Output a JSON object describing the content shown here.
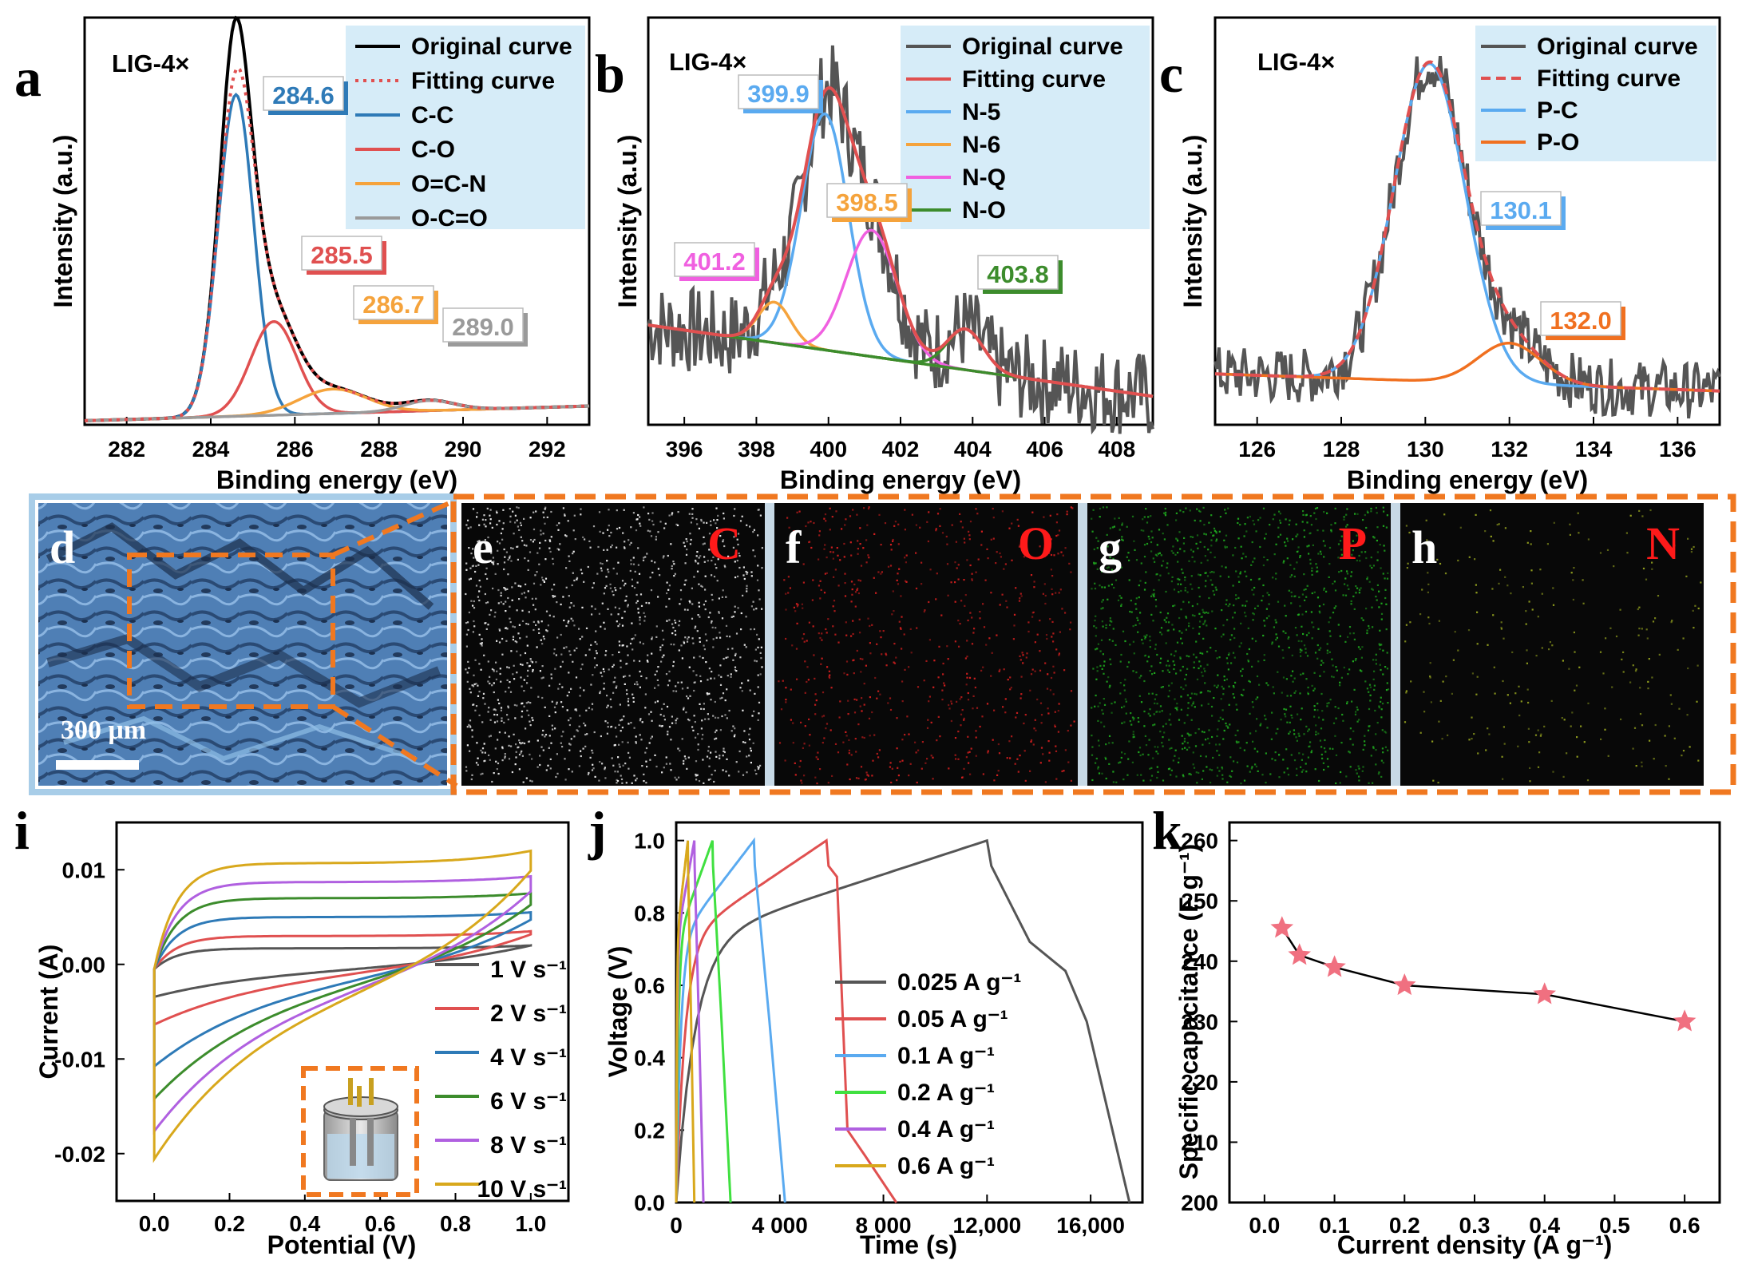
{
  "colors": {
    "black": "#000000",
    "dark_gray": "#555555",
    "red": "#e05050",
    "blue": "#2e7ab7",
    "light_blue": "#5aaaf0",
    "orange": "#f5a33c",
    "gray": "#9a9a9a",
    "pink": "#f060e0",
    "green": "#3c8c2c",
    "dark_orange": "#f07020",
    "legend_bg": "#d6ecf8",
    "dashed_box": "#f07820",
    "sem_blue": "#5a8fc8",
    "eds_c": "#ffffff",
    "eds_o": "#e02020",
    "eds_p": "#20b020",
    "eds_n": "#9aa820"
  },
  "chart_data": [
    {
      "id": "a",
      "panel_label": "a",
      "type": "line",
      "sample_label": "LIG-4×",
      "xlabel": "Binding energy (eV)",
      "ylabel": "Intensity (a.u.)",
      "xlim": [
        281,
        293
      ],
      "ylim": [
        0,
        1
      ],
      "xticks": [
        282,
        284,
        286,
        288,
        290,
        292
      ],
      "yticks": [],
      "legend_position": "top-right",
      "series": [
        {
          "name": "Original curve",
          "style": "solid",
          "color": "black"
        },
        {
          "name": "Fitting curve",
          "style": "dotted",
          "color": "red"
        },
        {
          "name": "C-C",
          "style": "solid",
          "color": "blue"
        },
        {
          "name": "C-O",
          "style": "solid",
          "color": "red"
        },
        {
          "name": "O=C-N",
          "style": "solid",
          "color": "orange"
        },
        {
          "name": "O-C=O",
          "style": "solid",
          "color": "gray"
        }
      ],
      "peaks": [
        {
          "label": "284.6",
          "x": 284.6,
          "color": "blue"
        },
        {
          "label": "285.5",
          "x": 285.5,
          "color": "red"
        },
        {
          "label": "286.7",
          "x": 286.7,
          "color": "orange"
        },
        {
          "label": "289.0",
          "x": 289.0,
          "color": "gray"
        }
      ]
    },
    {
      "id": "b",
      "panel_label": "b",
      "type": "line",
      "sample_label": "LIG-4×",
      "xlabel": "Binding energy (eV)",
      "ylabel": "Intensity (a.u.)",
      "xlim": [
        395,
        409
      ],
      "ylim": [
        0,
        1
      ],
      "xticks": [
        396,
        398,
        400,
        402,
        404,
        406,
        408
      ],
      "yticks": [],
      "legend_position": "top-right",
      "series": [
        {
          "name": "Original curve",
          "style": "solid",
          "color": "dark_gray"
        },
        {
          "name": "Fitting curve",
          "style": "solid",
          "color": "red"
        },
        {
          "name": "N-5",
          "style": "solid",
          "color": "light_blue"
        },
        {
          "name": "N-6",
          "style": "solid",
          "color": "orange"
        },
        {
          "name": "N-Q",
          "style": "solid",
          "color": "pink"
        },
        {
          "name": "N-O",
          "style": "solid",
          "color": "green"
        }
      ],
      "peaks": [
        {
          "label": "399.9",
          "x": 399.9,
          "color": "light_blue"
        },
        {
          "label": "398.5",
          "x": 398.5,
          "color": "orange"
        },
        {
          "label": "401.2",
          "x": 401.2,
          "color": "pink"
        },
        {
          "label": "403.8",
          "x": 403.8,
          "color": "green"
        }
      ]
    },
    {
      "id": "c",
      "panel_label": "c",
      "type": "line",
      "sample_label": "LIG-4×",
      "xlabel": "Binding energy (eV)",
      "ylabel": "Intensity (a.u.)",
      "xlim": [
        125,
        137
      ],
      "ylim": [
        0,
        1
      ],
      "xticks": [
        126,
        128,
        130,
        132,
        134,
        136
      ],
      "yticks": [],
      "legend_position": "top-right",
      "series": [
        {
          "name": "Original curve",
          "style": "solid",
          "color": "dark_gray"
        },
        {
          "name": "Fitting curve",
          "style": "dashed",
          "color": "red"
        },
        {
          "name": "P-C",
          "style": "solid",
          "color": "light_blue"
        },
        {
          "name": "P-O",
          "style": "solid",
          "color": "dark_orange"
        }
      ],
      "peaks": [
        {
          "label": "130.1",
          "x": 130.1,
          "color": "light_blue"
        },
        {
          "label": "132.0",
          "x": 132.0,
          "color": "dark_orange"
        }
      ]
    },
    {
      "id": "i",
      "panel_label": "i",
      "type": "line",
      "xlabel": "Potential (V)",
      "ylabel": "Current (A)",
      "xlim": [
        -0.1,
        1.1
      ],
      "ylim": [
        -0.025,
        0.015
      ],
      "xticks": [
        "0.0",
        "0.2",
        "0.4",
        "0.6",
        "0.8",
        "1.0"
      ],
      "yticks": [
        "0.01",
        "0.00",
        "-0.01",
        "-0.02"
      ],
      "legend_position": "right",
      "series": [
        {
          "name": "1 V s⁻¹",
          "color": "dark_gray",
          "i_top": 0.0022,
          "i_bottom": -0.0035,
          "i_vertex": 0.0025
        },
        {
          "name": "2 V s⁻¹",
          "color": "red",
          "i_top": 0.0035,
          "i_bottom": -0.0065,
          "i_vertex": 0.004
        },
        {
          "name": "4 V s⁻¹",
          "color": "blue",
          "i_top": 0.0055,
          "i_bottom": -0.011,
          "i_vertex": 0.006
        },
        {
          "name": "6 V s⁻¹",
          "color": "green",
          "i_top": 0.0075,
          "i_bottom": -0.0145,
          "i_vertex": 0.008
        },
        {
          "name": "8 V s⁻¹",
          "color": "purple",
          "i_top": 0.0092,
          "i_bottom": -0.018,
          "i_vertex": 0.0098
        },
        {
          "name": "10 V s⁻¹",
          "color": "gold",
          "i_top": 0.0112,
          "i_bottom": -0.021,
          "i_vertex": 0.0125
        }
      ]
    },
    {
      "id": "j",
      "panel_label": "j",
      "type": "line",
      "xlabel": "Time (s)",
      "ylabel": "Voltage (V)",
      "xlim": [
        0,
        18000
      ],
      "ylim": [
        0,
        1.05
      ],
      "xticks": [
        "0",
        "4 000",
        "8 000",
        "12,000",
        "16,000"
      ],
      "yticks": [
        "0.0",
        "0.2",
        "0.4",
        "0.6",
        "0.8",
        "1.0"
      ],
      "legend_position": "bottom-right",
      "series": [
        {
          "name": "0.025 A g⁻¹",
          "color": "dark_gray",
          "charge_end": 12000,
          "discharge_end": 17500
        },
        {
          "name": "0.05 A g⁻¹",
          "color": "red",
          "charge_end": 5800,
          "discharge_end": 8500
        },
        {
          "name": "0.1 A g⁻¹",
          "color": "light_blue",
          "charge_end": 3000,
          "discharge_end": 4200
        },
        {
          "name": "0.2 A g⁻¹",
          "color": "light_green",
          "charge_end": 1400,
          "discharge_end": 2100
        },
        {
          "name": "0.4 A g⁻¹",
          "color": "purple",
          "charge_end": 700,
          "discharge_end": 1050
        },
        {
          "name": "0.6 A g⁻¹",
          "color": "gold",
          "charge_end": 450,
          "discharge_end": 700
        }
      ]
    },
    {
      "id": "k",
      "panel_label": "k",
      "type": "line",
      "xlabel": "Current density (A g⁻¹)",
      "ylabel": "Specific capacitance (F g⁻¹)",
      "xlim": [
        -0.05,
        0.65
      ],
      "ylim": [
        200,
        263
      ],
      "xticks": [
        "0.0",
        "0.1",
        "0.2",
        "0.3",
        "0.4",
        "0.5",
        "0.6"
      ],
      "yticks": [
        "200",
        "210",
        "220",
        "230",
        "240",
        "250",
        "260"
      ],
      "x": [
        0.025,
        0.05,
        0.1,
        0.2,
        0.4,
        0.6
      ],
      "y": [
        245.5,
        241,
        239,
        236,
        234.5,
        230
      ]
    }
  ],
  "sem": {
    "panel_label": "d",
    "scale_bar_label": "300 μm"
  },
  "eds": [
    {
      "panel_label": "e",
      "element": "C",
      "color": "eds_c"
    },
    {
      "panel_label": "f",
      "element": "O",
      "color": "eds_o"
    },
    {
      "panel_label": "g",
      "element": "P",
      "color": "eds_p"
    },
    {
      "panel_label": "h",
      "element": "N",
      "color": "eds_n"
    }
  ],
  "inset": {
    "icon": "electrochemical-cell-icon"
  }
}
